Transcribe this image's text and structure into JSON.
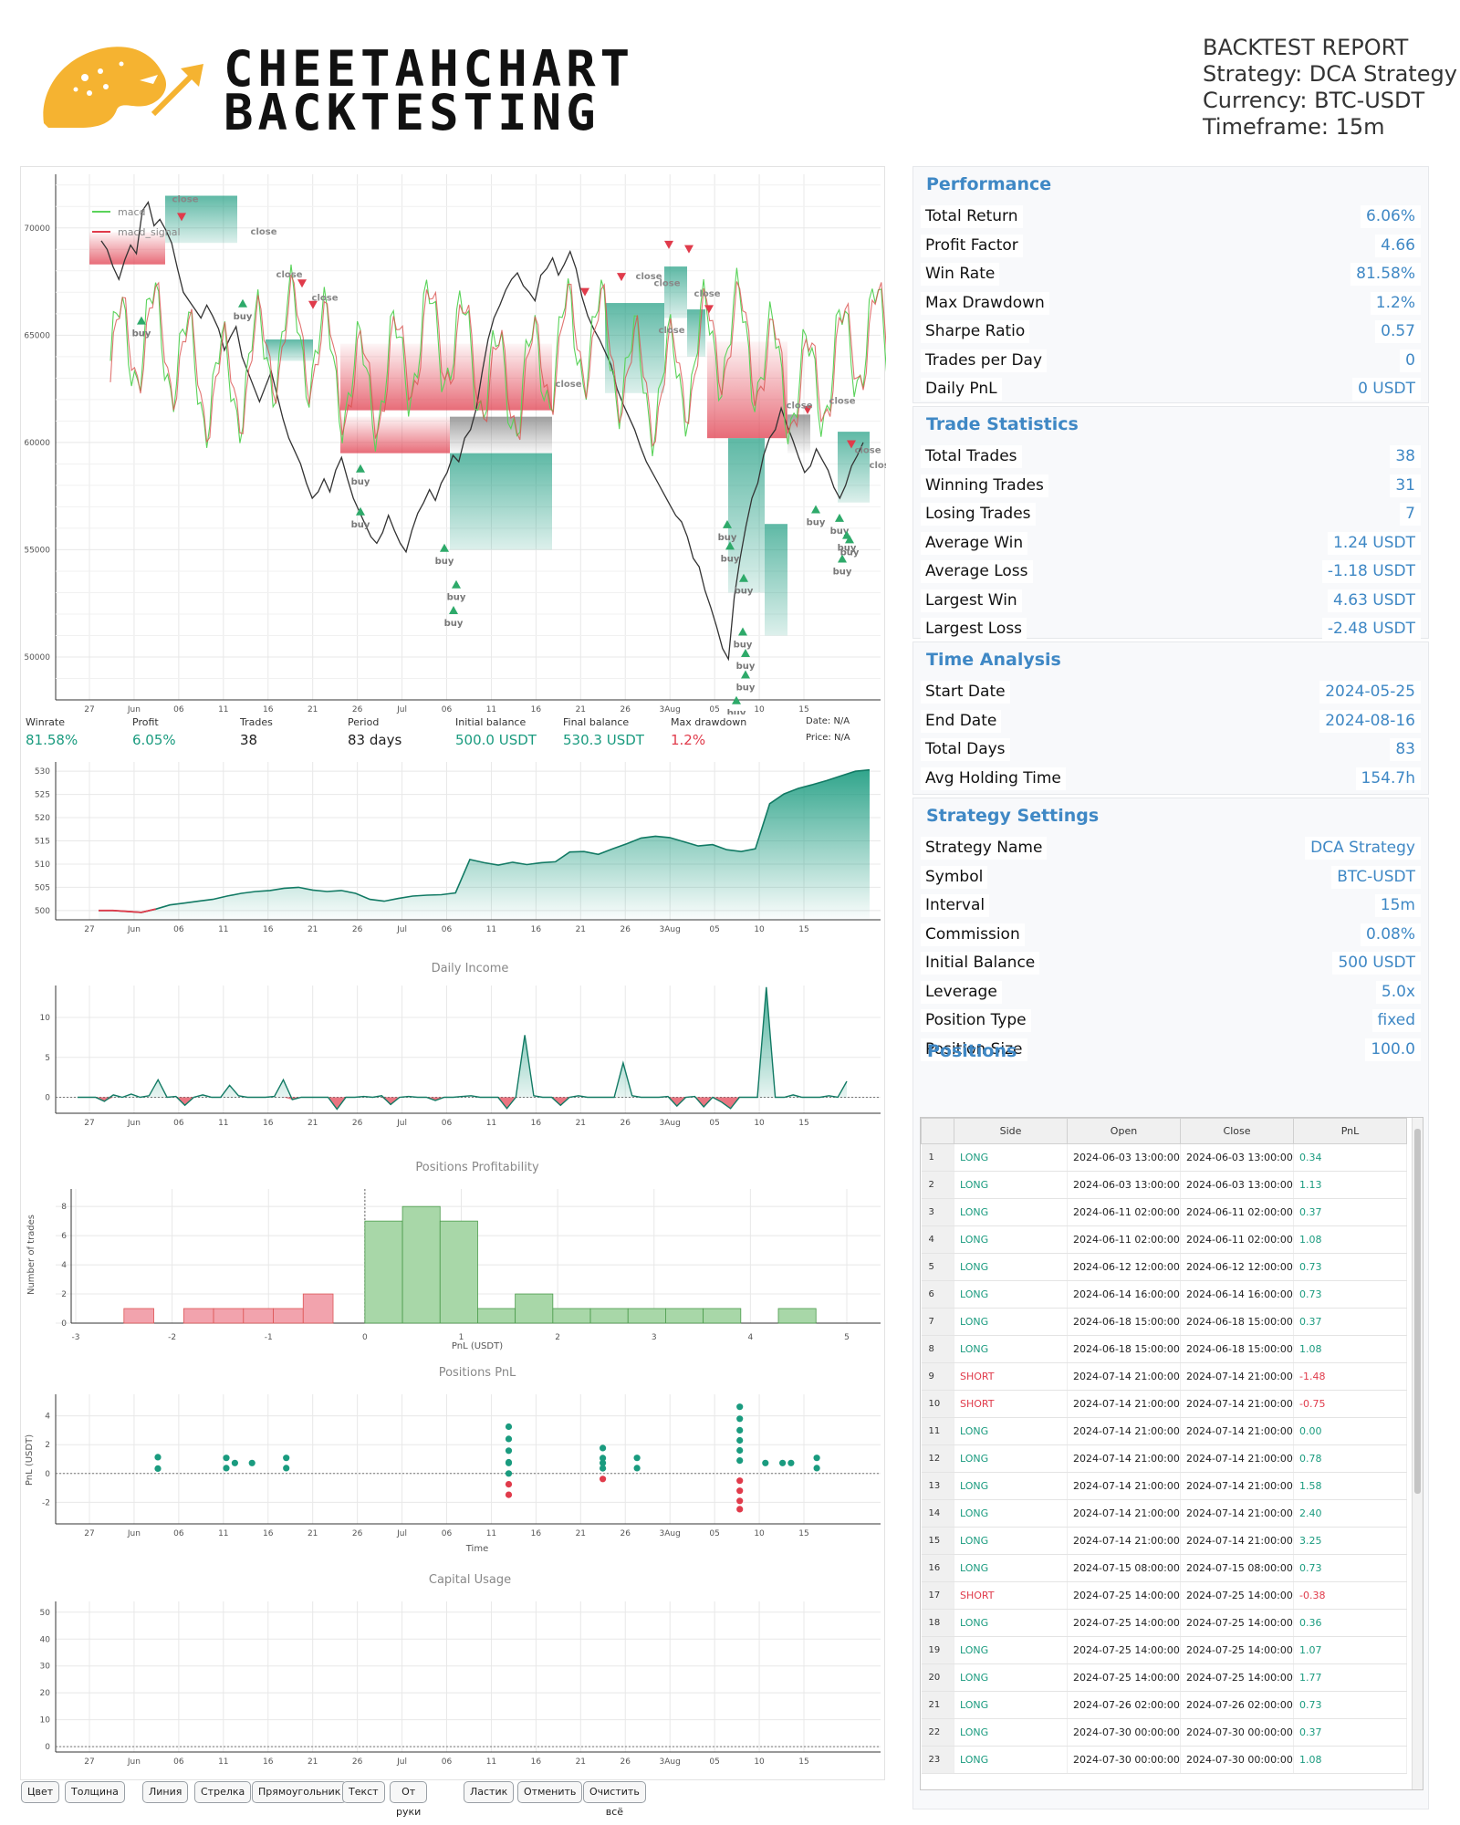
{
  "header": {
    "logo_line1": "CHEETAHCHART",
    "logo_line2": "BACKTESTING",
    "report_title": "BACKTEST REPORT",
    "strategy": "Strategy: DCA Strategy",
    "currency": "Currency: BTC-USDT",
    "timeframe": "Timeframe: 15m"
  },
  "colors": {
    "accent": "#3f88c5",
    "profit": "#1a9b7f",
    "loss": "#e03b4b",
    "logo": "#f5b331"
  },
  "chart_data": [
    {
      "type": "line",
      "name": "price",
      "ylim": [
        48000,
        72500
      ],
      "yticks": [
        50000,
        55000,
        60000,
        65000,
        70000
      ],
      "xticks": [
        "27",
        "Jun",
        "06",
        "11",
        "16",
        "21",
        "26",
        "Jul",
        "06",
        "11",
        "16",
        "21",
        "26",
        "3Aug",
        "05",
        "10",
        "15"
      ],
      "legend": [
        "macd",
        "macd_signal"
      ],
      "price_series": [
        69400,
        69000,
        68200,
        67600,
        68500,
        69200,
        68800,
        70800,
        71200,
        70100,
        70400,
        69900,
        69300,
        68100,
        67000,
        66600,
        66200,
        65800,
        66400,
        65900,
        65300,
        64300,
        64900,
        65400,
        64000,
        63300,
        62600,
        61900,
        62600,
        63300,
        62200,
        61100,
        60200,
        59600,
        59000,
        58100,
        57400,
        57700,
        58300,
        57700,
        58700,
        59300,
        58300,
        57400,
        56800,
        56200,
        55600,
        55300,
        55800,
        56600,
        55900,
        55300,
        54900,
        55900,
        56700,
        57200,
        57800,
        57300,
        58100,
        58600,
        59400,
        59100,
        60200,
        60600,
        61600,
        63300,
        64800,
        65800,
        66400,
        67100,
        67600,
        67900,
        67300,
        67000,
        66600,
        67800,
        68100,
        68600,
        67800,
        68300,
        68900,
        68100,
        66800,
        65900,
        65300,
        64800,
        64200,
        63600,
        62500,
        61800,
        61200,
        60600,
        59800,
        59100,
        58600,
        58100,
        57600,
        57100,
        56600,
        56300,
        55600,
        54600,
        54200,
        53100,
        52300,
        51400,
        50400,
        49900,
        52800,
        54600,
        56100,
        57400,
        58100,
        59400,
        60200,
        60600,
        61600,
        60800,
        60100,
        59300,
        58600,
        58900,
        59700,
        59200,
        58700,
        57900,
        57400,
        58000,
        58900,
        59400,
        60000
      ],
      "buy_labels": [
        "buy",
        "buy",
        "buy",
        "buy",
        "buy",
        "buy",
        "buy",
        "buy",
        "buy",
        "buy",
        "buy",
        "buy",
        "buy",
        "buy",
        "buy",
        "buy",
        "buy",
        "buy",
        "buy"
      ],
      "close_labels": [
        "close",
        "close",
        "close",
        "close",
        "close",
        "close",
        "close",
        "close",
        "close",
        "close",
        "close",
        "close",
        "close"
      ]
    },
    {
      "type": "area",
      "name": "equity",
      "ylim": [
        498,
        532
      ],
      "yticks": [
        500,
        505,
        510,
        515,
        520,
        525,
        530
      ],
      "xticks": [
        "27",
        "Jun",
        "06",
        "11",
        "16",
        "21",
        "26",
        "Jul",
        "06",
        "11",
        "16",
        "21",
        "26",
        "3Aug",
        "05",
        "10",
        "15"
      ],
      "values": [
        500.0,
        500.0,
        499.8,
        499.6,
        500.3,
        501.2,
        501.6,
        502.0,
        502.4,
        503.1,
        503.7,
        504.1,
        504.3,
        504.8,
        505.0,
        504.4,
        504.1,
        504.3,
        503.7,
        502.4,
        502.0,
        502.6,
        503.1,
        503.3,
        503.4,
        503.8,
        511.0,
        510.3,
        509.8,
        510.4,
        509.9,
        510.3,
        510.5,
        512.6,
        512.7,
        512.1,
        513.3,
        514.4,
        515.6,
        516.0,
        515.7,
        514.8,
        513.9,
        514.2,
        513.1,
        512.7,
        513.3,
        523.0,
        525.1,
        526.3,
        527.1,
        528.0,
        529.0,
        530.0,
        530.3
      ]
    },
    {
      "type": "line",
      "name": "Daily Income",
      "title": "Daily Income",
      "ylim": [
        -2,
        14
      ],
      "yticks": [
        0,
        5,
        10
      ],
      "xticks": [
        "27",
        "Jun",
        "06",
        "11",
        "16",
        "21",
        "26",
        "Jul",
        "06",
        "11",
        "16",
        "21",
        "26",
        "3Aug",
        "05",
        "10",
        "15"
      ],
      "values": [
        0,
        0,
        0,
        -0.5,
        0.3,
        0,
        0.4,
        0,
        0.2,
        2.2,
        0,
        0.1,
        -1.0,
        0,
        0.3,
        0,
        0,
        1.5,
        0.2,
        0,
        0,
        0,
        0.1,
        2.2,
        -0.3,
        0,
        0,
        0,
        0,
        -1.5,
        0,
        0,
        0.1,
        0,
        0.2,
        -0.9,
        0,
        0.1,
        0,
        0,
        -0.4,
        0,
        0,
        0.1,
        0.2,
        0,
        0,
        0,
        -1.4,
        0,
        7.8,
        0.2,
        0,
        0,
        -1.0,
        0,
        0.2,
        0,
        0,
        0,
        0,
        4.3,
        0.2,
        0,
        0,
        0,
        0.1,
        -1.1,
        0,
        0.1,
        -1.2,
        0,
        -0.6,
        -1.4,
        0,
        0,
        0,
        13.8,
        0,
        0,
        0.3,
        0,
        0,
        0,
        0.2,
        0,
        2.0
      ]
    },
    {
      "type": "bar",
      "name": "Positions Profitability",
      "title": "Positions Profitability",
      "xlabel": "PnL (USDT)",
      "ylabel": "Number of trades",
      "xlim": [
        -3,
        5
      ],
      "xticks": [
        -3,
        -2,
        -1,
        0,
        1,
        2,
        3,
        4,
        5
      ],
      "yticks": [
        0,
        2,
        4,
        6,
        8
      ],
      "bins": [
        {
          "x0": -2.5,
          "x1": -2.19,
          "count": 1
        },
        {
          "x0": -1.88,
          "x1": -1.57,
          "count": 1
        },
        {
          "x0": -1.57,
          "x1": -1.26,
          "count": 1
        },
        {
          "x0": -1.26,
          "x1": -0.95,
          "count": 1
        },
        {
          "x0": -0.95,
          "x1": -0.64,
          "count": 1
        },
        {
          "x0": -0.64,
          "x1": -0.33,
          "count": 2
        },
        {
          "x0": 0.0,
          "x1": 0.39,
          "count": 7
        },
        {
          "x0": 0.39,
          "x1": 0.78,
          "count": 8
        },
        {
          "x0": 0.78,
          "x1": 1.17,
          "count": 7
        },
        {
          "x0": 1.17,
          "x1": 1.56,
          "count": 1
        },
        {
          "x0": 1.56,
          "x1": 1.95,
          "count": 2
        },
        {
          "x0": 1.95,
          "x1": 2.34,
          "count": 1
        },
        {
          "x0": 2.34,
          "x1": 2.73,
          "count": 1
        },
        {
          "x0": 2.73,
          "x1": 3.12,
          "count": 1
        },
        {
          "x0": 3.12,
          "x1": 3.51,
          "count": 1
        },
        {
          "x0": 3.51,
          "x1": 3.9,
          "count": 1
        },
        {
          "x0": 4.29,
          "x1": 4.68,
          "count": 1
        }
      ]
    },
    {
      "type": "scatter",
      "name": "Positions PnL",
      "title": "Positions PnL",
      "xlabel": "Time",
      "ylabel": "PnL (USDT)",
      "ylim": [
        -3.5,
        5.5
      ],
      "yticks": [
        -2,
        0,
        2,
        4
      ],
      "xticks": [
        "27",
        "Jun",
        "06",
        "11",
        "16",
        "21",
        "26",
        "Jul",
        "06",
        "11",
        "16",
        "21",
        "26",
        "3Aug",
        "05",
        "10",
        "15"
      ],
      "points": [
        [
          9.5,
          0.34
        ],
        [
          9.5,
          1.13
        ],
        [
          17.5,
          0.37
        ],
        [
          17.5,
          1.08
        ],
        [
          18.5,
          0.73
        ],
        [
          20.5,
          0.73
        ],
        [
          24.5,
          0.37
        ],
        [
          24.5,
          1.08
        ],
        [
          50.5,
          -1.48
        ],
        [
          50.5,
          -0.75
        ],
        [
          50.5,
          0.0
        ],
        [
          50.5,
          0.78
        ],
        [
          50.5,
          1.58
        ],
        [
          50.5,
          2.4
        ],
        [
          50.5,
          3.25
        ],
        [
          50.5,
          0.73
        ],
        [
          61.5,
          -0.38
        ],
        [
          61.5,
          0.36
        ],
        [
          61.5,
          1.07
        ],
        [
          61.5,
          1.77
        ],
        [
          61.5,
          0.73
        ],
        [
          65.5,
          0.37
        ],
        [
          65.5,
          1.08
        ],
        [
          77.5,
          -2.48
        ],
        [
          77.5,
          -1.9
        ],
        [
          77.5,
          -1.2
        ],
        [
          77.5,
          -0.5
        ],
        [
          77.5,
          0.9
        ],
        [
          77.5,
          1.6
        ],
        [
          77.5,
          2.3
        ],
        [
          77.5,
          3.0
        ],
        [
          77.5,
          3.8
        ],
        [
          77.5,
          4.63
        ],
        [
          80.5,
          0.73
        ],
        [
          82.5,
          0.73
        ],
        [
          83.5,
          0.73
        ],
        [
          86.5,
          0.37
        ],
        [
          86.5,
          1.08
        ]
      ]
    },
    {
      "type": "line",
      "name": "Capital Usage",
      "title": "Capital Usage",
      "ylim": [
        -2,
        54
      ],
      "yticks": [
        0,
        10,
        20,
        30,
        40,
        50
      ],
      "xticks": [
        "27",
        "Jun",
        "06",
        "11",
        "16",
        "21",
        "26",
        "Jul",
        "06",
        "11",
        "16",
        "21",
        "26",
        "3Aug",
        "05",
        "10",
        "15"
      ],
      "values": []
    }
  ],
  "stats_strip": {
    "winrate_label": "Winrate",
    "winrate": "81.58%",
    "profit_label": "Profit",
    "profit": "6.05%",
    "trades_label": "Trades",
    "trades": "38",
    "period_label": "Period",
    "period": "83 days",
    "initial_label": "Initial balance",
    "initial": "500.0 USDT",
    "final_label": "Final balance",
    "final": "530.3 USDT",
    "drawdown_label": "Max drawdown",
    "drawdown": "1.2%",
    "date_text": "Date: N/A",
    "price_text": "Price: N/A"
  },
  "toolbar": [
    "Цвет",
    "Толщина",
    "Линия",
    "Стрелка",
    "Прямоугольник",
    "Текст",
    "От руки",
    "Ластик",
    "Отменить",
    "Очистить всё"
  ],
  "performance": {
    "title": "Performance",
    "rows": [
      {
        "label": "Total Return",
        "value": "6.06%"
      },
      {
        "label": "Profit Factor",
        "value": "4.66"
      },
      {
        "label": "Win Rate",
        "value": "81.58%"
      },
      {
        "label": "Max Drawdown",
        "value": "1.2%"
      },
      {
        "label": "Sharpe Ratio",
        "value": "0.57"
      },
      {
        "label": "Trades per Day",
        "value": "0"
      },
      {
        "label": "Daily PnL",
        "value": "0 USDT"
      }
    ]
  },
  "trade_stats": {
    "title": "Trade Statistics",
    "rows": [
      {
        "label": "Total Trades",
        "value": "38"
      },
      {
        "label": "Winning Trades",
        "value": "31"
      },
      {
        "label": "Losing Trades",
        "value": "7"
      },
      {
        "label": "Average Win",
        "value": "1.24 USDT"
      },
      {
        "label": "Average Loss",
        "value": "-1.18 USDT"
      },
      {
        "label": "Largest Win",
        "value": "4.63 USDT"
      },
      {
        "label": "Largest Loss",
        "value": "-2.48 USDT"
      }
    ]
  },
  "time_analysis": {
    "title": "Time Analysis",
    "rows": [
      {
        "label": "Start Date",
        "value": "2024-05-25"
      },
      {
        "label": "End Date",
        "value": "2024-08-16"
      },
      {
        "label": "Total Days",
        "value": "83"
      },
      {
        "label": "Avg Holding Time",
        "value": "154.7h"
      }
    ]
  },
  "strategy_settings": {
    "title": "Strategy Settings",
    "rows": [
      {
        "label": "Strategy Name",
        "value": "DCA Strategy"
      },
      {
        "label": "Symbol",
        "value": "BTC-USDT"
      },
      {
        "label": "Interval",
        "value": "15m"
      },
      {
        "label": "Commission",
        "value": "0.08%"
      },
      {
        "label": "Initial Balance",
        "value": "500 USDT"
      },
      {
        "label": "Leverage",
        "value": "5.0x"
      },
      {
        "label": "Position Type",
        "value": "fixed"
      },
      {
        "label": "Position Size",
        "value": "100.0"
      }
    ]
  },
  "positions": {
    "title": "Positions",
    "columns": [
      "Side",
      "Open",
      "Close",
      "PnL"
    ],
    "rows": [
      [
        "1",
        "LONG",
        "2024-06-03 13:00:00",
        "2024-06-03 13:00:00",
        "0.34"
      ],
      [
        "2",
        "LONG",
        "2024-06-03 13:00:00",
        "2024-06-03 13:00:00",
        "1.13"
      ],
      [
        "3",
        "LONG",
        "2024-06-11 02:00:00",
        "2024-06-11 02:00:00",
        "0.37"
      ],
      [
        "4",
        "LONG",
        "2024-06-11 02:00:00",
        "2024-06-11 02:00:00",
        "1.08"
      ],
      [
        "5",
        "LONG",
        "2024-06-12 12:00:00",
        "2024-06-12 12:00:00",
        "0.73"
      ],
      [
        "6",
        "LONG",
        "2024-06-14 16:00:00",
        "2024-06-14 16:00:00",
        "0.73"
      ],
      [
        "7",
        "LONG",
        "2024-06-18 15:00:00",
        "2024-06-18 15:00:00",
        "0.37"
      ],
      [
        "8",
        "LONG",
        "2024-06-18 15:00:00",
        "2024-06-18 15:00:00",
        "1.08"
      ],
      [
        "9",
        "SHORT",
        "2024-07-14 21:00:00",
        "2024-07-14 21:00:00",
        "-1.48"
      ],
      [
        "10",
        "SHORT",
        "2024-07-14 21:00:00",
        "2024-07-14 21:00:00",
        "-0.75"
      ],
      [
        "11",
        "LONG",
        "2024-07-14 21:00:00",
        "2024-07-14 21:00:00",
        "0.00"
      ],
      [
        "12",
        "LONG",
        "2024-07-14 21:00:00",
        "2024-07-14 21:00:00",
        "0.78"
      ],
      [
        "13",
        "LONG",
        "2024-07-14 21:00:00",
        "2024-07-14 21:00:00",
        "1.58"
      ],
      [
        "14",
        "LONG",
        "2024-07-14 21:00:00",
        "2024-07-14 21:00:00",
        "2.40"
      ],
      [
        "15",
        "LONG",
        "2024-07-14 21:00:00",
        "2024-07-14 21:00:00",
        "3.25"
      ],
      [
        "16",
        "LONG",
        "2024-07-15 08:00:00",
        "2024-07-15 08:00:00",
        "0.73"
      ],
      [
        "17",
        "SHORT",
        "2024-07-25 14:00:00",
        "2024-07-25 14:00:00",
        "-0.38"
      ],
      [
        "18",
        "LONG",
        "2024-07-25 14:00:00",
        "2024-07-25 14:00:00",
        "0.36"
      ],
      [
        "19",
        "LONG",
        "2024-07-25 14:00:00",
        "2024-07-25 14:00:00",
        "1.07"
      ],
      [
        "20",
        "LONG",
        "2024-07-25 14:00:00",
        "2024-07-25 14:00:00",
        "1.77"
      ],
      [
        "21",
        "LONG",
        "2024-07-26 02:00:00",
        "2024-07-26 02:00:00",
        "0.73"
      ],
      [
        "22",
        "LONG",
        "2024-07-30 00:00:00",
        "2024-07-30 00:00:00",
        "0.37"
      ],
      [
        "23",
        "LONG",
        "2024-07-30 00:00:00",
        "2024-07-30 00:00:00",
        "1.08"
      ]
    ]
  }
}
